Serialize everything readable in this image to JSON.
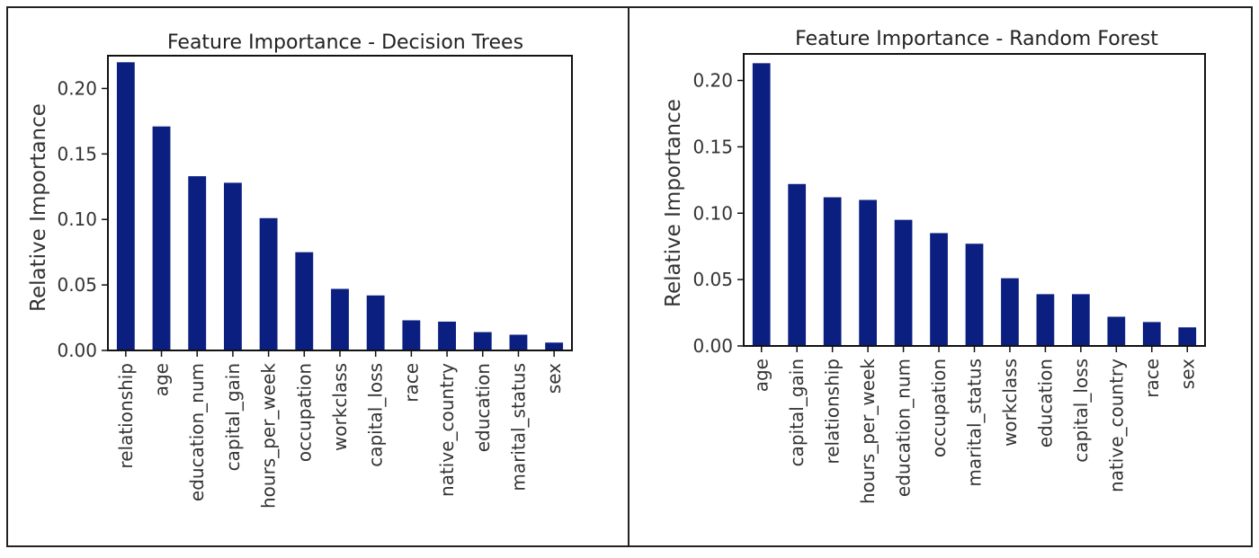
{
  "chart_data": [
    {
      "type": "bar",
      "title": "Feature Importance - Decision Trees",
      "xlabel": "",
      "ylabel": "Relative Importance",
      "ylim": [
        0,
        0.225
      ],
      "yticks": [
        "0.00",
        "0.05",
        "0.10",
        "0.15",
        "0.20"
      ],
      "ytick_values": [
        0,
        0.05,
        0.1,
        0.15,
        0.2
      ],
      "grid": false,
      "bar_color": "#0b1f80",
      "categories": [
        "relationship",
        "age",
        "education_num",
        "capital_gain",
        "hours_per_week",
        "occupation",
        "workclass",
        "capital_loss",
        "race",
        "native_country",
        "education",
        "marital_status",
        "sex"
      ],
      "values": [
        0.22,
        0.171,
        0.133,
        0.128,
        0.101,
        0.075,
        0.047,
        0.042,
        0.023,
        0.022,
        0.014,
        0.012,
        0.006
      ]
    },
    {
      "type": "bar",
      "title": "Feature Importance - Random Forest",
      "xlabel": "",
      "ylabel": "Relative Importance",
      "ylim": [
        0,
        0.22
      ],
      "yticks": [
        "0.00",
        "0.05",
        "0.10",
        "0.15",
        "0.20"
      ],
      "ytick_values": [
        0,
        0.05,
        0.1,
        0.15,
        0.2
      ],
      "grid": false,
      "bar_color": "#0b1f80",
      "categories": [
        "age",
        "capital_gain",
        "relationship",
        "hours_per_week",
        "education_num",
        "occupation",
        "marital_status",
        "workclass",
        "education",
        "capital_loss",
        "native_country",
        "race",
        "sex"
      ],
      "values": [
        0.213,
        0.122,
        0.112,
        0.11,
        0.095,
        0.085,
        0.077,
        0.051,
        0.039,
        0.039,
        0.022,
        0.018,
        0.014
      ]
    }
  ]
}
